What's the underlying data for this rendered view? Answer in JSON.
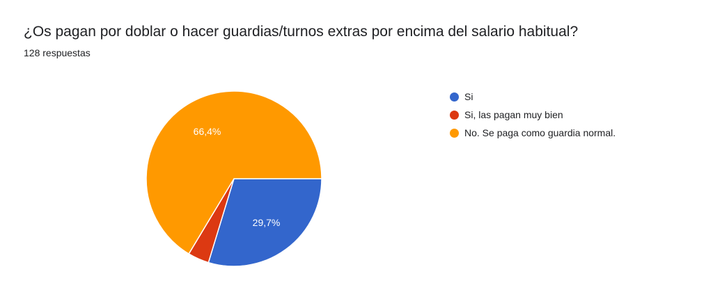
{
  "question": {
    "title": "¿Os pagan por doblar o hacer guardias/turnos extras por encima del salario habitual?",
    "response_count": "128 respuestas"
  },
  "chart_data": {
    "type": "pie",
    "slices": [
      {
        "label": "Si",
        "percent": 29.7,
        "display": "29,7%",
        "color": "#3366cc"
      },
      {
        "label": "Si, las pagan muy bien",
        "percent": 3.9,
        "display": "",
        "color": "#dc3912"
      },
      {
        "label": "No. Se paga como guardia normal.",
        "percent": 66.4,
        "display": "66,4%",
        "color": "#ff9900"
      }
    ],
    "legend_position": "right",
    "start_direction": "right-clockwise"
  }
}
